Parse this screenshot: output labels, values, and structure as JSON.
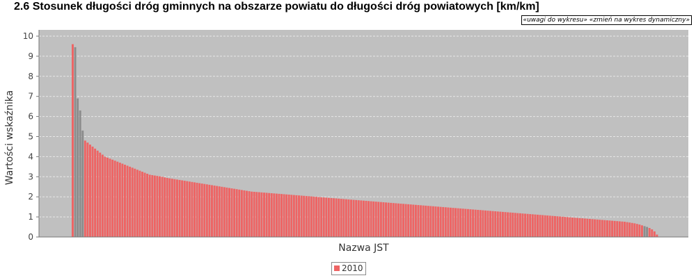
{
  "header": {
    "title": "2.6 Stosunek długości dróg gminnych na obszarze powiatu do długości dróg powiatowych [km/km]",
    "link_comments": "«uwagi do wykresu»",
    "link_dynamic": "«zmień na wykres dynamiczny»"
  },
  "colors": {
    "plot_background": "#c0c0c0",
    "gridline": "#e8e8e8",
    "bar_fill": "#ee6464",
    "bar_dark": "#8c8c8c"
  },
  "chart_data": {
    "type": "bar",
    "title": "2.6 Stosunek długości dróg gminnych na obszarze powiatu do długości dróg powiatowych [km/km]",
    "xlabel": "Nazwa JST",
    "ylabel": "Wartości wskaźnika",
    "ylim": [
      0,
      10
    ],
    "yticks": [
      0,
      1,
      2,
      3,
      4,
      5,
      6,
      7,
      8,
      9,
      10
    ],
    "grid": true,
    "legend_position": "bottom",
    "series": [
      {
        "name": "2010",
        "color": "#ee6464",
        "values": [
          9.6,
          9.45,
          6.9,
          6.3,
          5.3,
          4.8,
          4.7,
          4.6,
          4.5,
          4.4,
          4.3,
          4.2,
          4.1,
          4.0,
          3.95,
          3.9,
          3.85,
          3.8,
          3.75,
          3.7,
          3.65,
          3.6,
          3.55,
          3.5,
          3.45,
          3.4,
          3.35,
          3.3,
          3.25,
          3.2,
          3.15,
          3.1,
          3.08,
          3.06,
          3.04,
          3.02,
          3.0,
          2.97,
          2.94,
          2.92,
          2.9,
          2.88,
          2.86,
          2.84,
          2.82,
          2.8,
          2.78,
          2.76,
          2.74,
          2.72,
          2.7,
          2.68,
          2.66,
          2.64,
          2.62,
          2.6,
          2.58,
          2.56,
          2.54,
          2.52,
          2.5,
          2.48,
          2.46,
          2.44,
          2.42,
          2.4,
          2.38,
          2.36,
          2.34,
          2.32,
          2.3,
          2.28,
          2.26,
          2.25,
          2.24,
          2.23,
          2.22,
          2.21,
          2.2,
          2.19,
          2.18,
          2.17,
          2.16,
          2.15,
          2.14,
          2.13,
          2.12,
          2.11,
          2.1,
          2.09,
          2.08,
          2.07,
          2.06,
          2.05,
          2.04,
          2.03,
          2.02,
          2.01,
          2.0,
          1.99,
          1.98,
          1.97,
          1.96,
          1.95,
          1.94,
          1.93,
          1.92,
          1.91,
          1.9,
          1.89,
          1.88,
          1.87,
          1.86,
          1.85,
          1.84,
          1.83,
          1.82,
          1.81,
          1.8,
          1.79,
          1.78,
          1.77,
          1.76,
          1.75,
          1.74,
          1.73,
          1.72,
          1.71,
          1.7,
          1.69,
          1.68,
          1.67,
          1.66,
          1.65,
          1.64,
          1.63,
          1.62,
          1.61,
          1.6,
          1.59,
          1.58,
          1.57,
          1.56,
          1.55,
          1.54,
          1.53,
          1.52,
          1.51,
          1.5,
          1.49,
          1.48,
          1.47,
          1.46,
          1.45,
          1.44,
          1.43,
          1.42,
          1.41,
          1.4,
          1.39,
          1.38,
          1.37,
          1.36,
          1.35,
          1.34,
          1.33,
          1.32,
          1.31,
          1.3,
          1.29,
          1.28,
          1.27,
          1.26,
          1.25,
          1.24,
          1.23,
          1.22,
          1.21,
          1.2,
          1.19,
          1.18,
          1.17,
          1.16,
          1.15,
          1.14,
          1.13,
          1.12,
          1.11,
          1.1,
          1.09,
          1.08,
          1.07,
          1.06,
          1.05,
          1.04,
          1.03,
          1.02,
          1.01,
          1.0,
          0.99,
          0.98,
          0.97,
          0.96,
          0.95,
          0.94,
          0.93,
          0.92,
          0.91,
          0.9,
          0.89,
          0.88,
          0.87,
          0.86,
          0.85,
          0.84,
          0.83,
          0.82,
          0.81,
          0.8,
          0.79,
          0.78,
          0.77,
          0.76,
          0.74,
          0.72,
          0.7,
          0.68,
          0.65,
          0.62,
          0.58,
          0.54,
          0.5,
          0.45,
          0.38,
          0.28,
          0.12
        ],
        "dark_indices": [
          1,
          2,
          3,
          4,
          230,
          231
        ]
      }
    ]
  }
}
